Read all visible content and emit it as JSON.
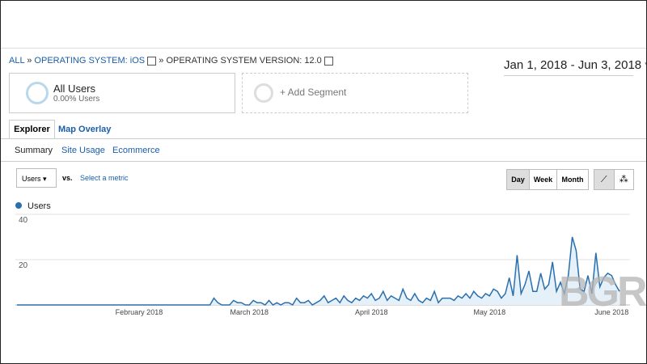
{
  "ui": {
    "breadcrumb": {
      "all": "ALL",
      "sep1": "»",
      "os": "OPERATING SYSTEM: iOS",
      "sep2": "»",
      "version": "OPERATING SYSTEM VERSION: 12.0"
    },
    "date_range": "Jan 1, 2018 - Jun 3, 2018",
    "segment": {
      "name": "All Users",
      "share": "0.00% Users",
      "add": "+ Add Segment"
    },
    "tabs": [
      "Explorer",
      "Map Overlay"
    ],
    "subtabs": [
      "Summary",
      "Site Usage",
      "Ecommerce"
    ],
    "metric": "Users",
    "vs": "vs.",
    "select_metric": "Select a metric",
    "periods": [
      "Day",
      "Week",
      "Month"
    ],
    "watermark": "BGR"
  },
  "chart_data": {
    "type": "line",
    "categories": [
      null,
      null,
      null,
      null,
      null,
      null,
      null,
      null,
      null,
      null,
      null,
      null,
      null,
      null,
      null,
      null,
      null,
      null,
      null,
      null,
      null,
      null,
      null,
      null,
      null,
      null,
      null,
      null,
      null,
      null,
      null,
      "February 2018",
      null,
      null,
      null,
      null,
      null,
      null,
      null,
      null,
      null,
      null,
      null,
      null,
      null,
      null,
      null,
      null,
      null,
      null,
      null,
      null,
      null,
      null,
      null,
      null,
      null,
      null,
      null,
      "March 2018",
      null,
      null,
      null,
      null,
      null,
      null,
      null,
      null,
      null,
      null,
      null,
      null,
      null,
      null,
      null,
      null,
      null,
      null,
      null,
      null,
      null,
      null,
      null,
      null,
      null,
      null,
      null,
      null,
      null,
      null,
      "April 2018",
      null,
      null,
      null,
      null,
      null,
      null,
      null,
      null,
      null,
      null,
      null,
      null,
      null,
      null,
      null,
      null,
      null,
      null,
      null,
      null,
      null,
      null,
      null,
      null,
      null,
      null,
      null,
      null,
      null,
      "May 2018",
      null,
      null,
      null,
      null,
      null,
      null,
      null,
      null,
      null,
      null,
      null,
      null,
      null,
      null,
      null,
      null,
      null,
      null,
      null,
      null,
      null,
      null,
      null,
      null,
      null,
      null,
      null,
      null,
      null,
      null,
      "June 2018",
      null,
      null
    ],
    "series": [
      {
        "name": "Users",
        "color": "#2a6fae",
        "values": [
          0,
          0,
          0,
          0,
          0,
          0,
          0,
          0,
          0,
          0,
          0,
          0,
          0,
          0,
          0,
          0,
          0,
          0,
          0,
          0,
          0,
          0,
          0,
          0,
          0,
          0,
          0,
          0,
          0,
          0,
          0,
          0,
          0,
          0,
          0,
          0,
          0,
          0,
          0,
          0,
          0,
          0,
          0,
          0,
          0,
          0,
          0,
          0,
          0,
          0,
          3,
          1,
          0,
          0,
          0,
          2,
          1,
          1,
          0,
          0,
          2,
          1,
          1,
          0,
          2,
          0,
          1,
          0,
          1,
          1,
          0,
          3,
          1,
          1,
          2,
          0,
          1,
          2,
          4,
          1,
          2,
          3,
          1,
          4,
          2,
          1,
          3,
          2,
          4,
          3,
          5,
          2,
          3,
          6,
          2,
          4,
          3,
          2,
          7,
          3,
          2,
          5,
          2,
          1,
          3,
          2,
          6,
          1,
          3,
          3,
          3,
          2,
          4,
          3,
          5,
          3,
          6,
          4,
          3,
          5,
          4,
          7,
          6,
          3,
          5,
          12,
          4,
          22,
          5,
          9,
          15,
          6,
          6,
          14,
          7,
          9,
          19,
          6,
          10,
          5,
          13,
          30,
          24,
          7,
          6,
          13,
          5,
          23,
          8,
          12,
          14,
          13,
          9,
          6
        ]
      }
    ],
    "ylim": [
      0,
      40
    ],
    "yticks": [
      20,
      40
    ],
    "grid": true
  }
}
